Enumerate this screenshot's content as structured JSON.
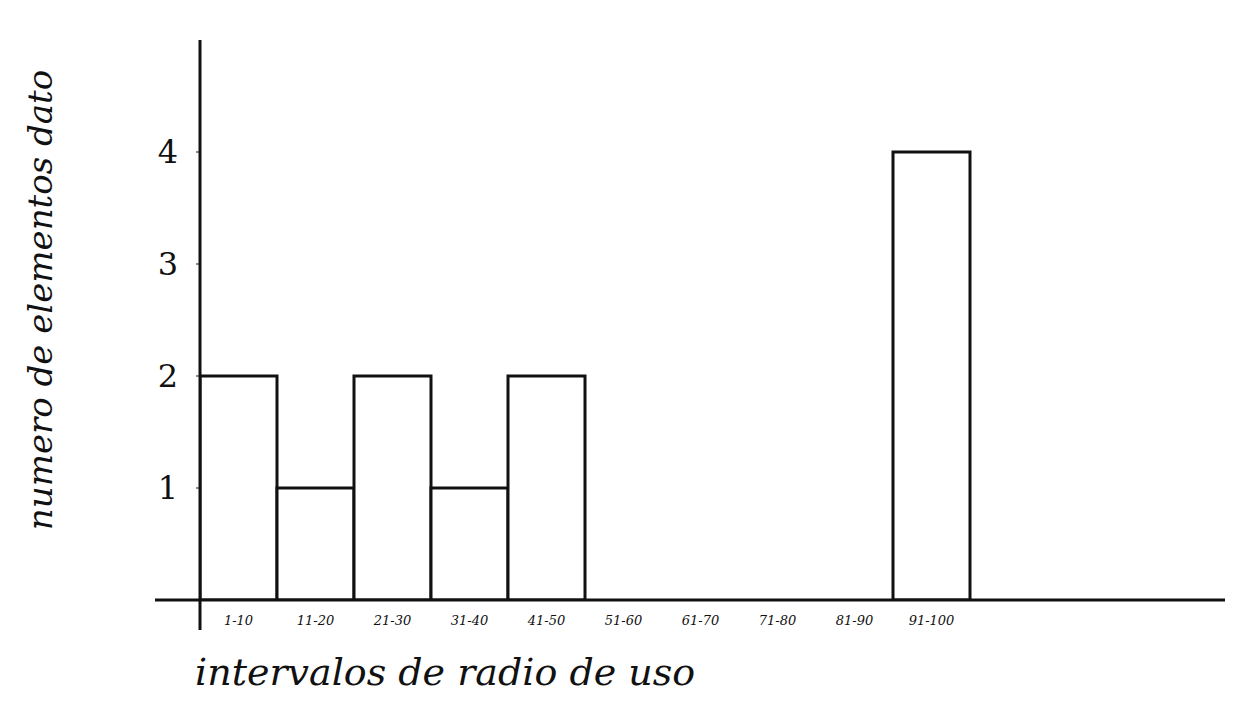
{
  "chart_data": {
    "type": "bar",
    "x_label": "intervalos de radio de uso",
    "y_label": "numero de elementos dato",
    "categories": [
      "1-10",
      "11-20",
      "21-30",
      "31-40",
      "41-50",
      "51-60",
      "61-70",
      "71-80",
      "81-90",
      "91-100"
    ],
    "values": [
      2,
      1,
      2,
      1,
      2,
      0,
      0,
      0,
      0,
      4
    ],
    "color": "#ffffff",
    "ylim": [
      0,
      5
    ],
    "yticks": [
      1,
      2,
      3,
      4
    ],
    "grid": false
  }
}
